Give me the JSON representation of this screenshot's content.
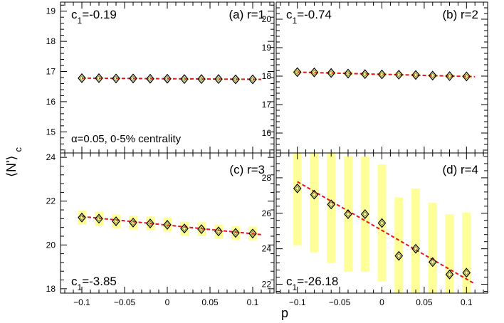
{
  "figure": {
    "ylabel": "⟨N'⟩c",
    "xlabel": "p",
    "colors": {
      "fit": "#e8141a",
      "band": "#ffff99",
      "marker": "#000000",
      "marker_fill": "#8b8c3a"
    }
  },
  "chart_data": [
    {
      "type": "scatter",
      "title": "(a) r=1",
      "c1_label": "c",
      "c1_sub": "1",
      "c1_value": "=-0.19",
      "note": "α=0.05, 0-5% centrality",
      "xlim": [
        -0.125,
        0.125
      ],
      "ylim": [
        14.3,
        19.3
      ],
      "yticks": [
        15,
        16,
        17,
        18,
        19
      ],
      "x": [
        -0.1,
        -0.08,
        -0.06,
        -0.04,
        -0.02,
        0,
        0.02,
        0.04,
        0.06,
        0.08,
        0.1
      ],
      "y": [
        16.78,
        16.78,
        16.77,
        16.77,
        16.76,
        16.76,
        16.75,
        16.75,
        16.75,
        16.74,
        16.74
      ],
      "band_halfwidth": [
        0.03,
        0.03,
        0.03,
        0.03,
        0.03,
        0.03,
        0.03,
        0.03,
        0.03,
        0.03,
        0.03
      ],
      "fit": {
        "p0": -0.1,
        "y0": 16.78,
        "p1": 0.11,
        "y1": 16.74
      }
    },
    {
      "type": "scatter",
      "title": "(b) r=2",
      "c1_label": "c",
      "c1_sub": "1",
      "c1_value": "=-0.74",
      "note": "",
      "xlim": [
        -0.125,
        0.125
      ],
      "ylim": [
        15.3,
        20.6
      ],
      "yticks": [
        16,
        17,
        18,
        19,
        20
      ],
      "x": [
        -0.1,
        -0.08,
        -0.06,
        -0.04,
        -0.02,
        0,
        0.02,
        0.04,
        0.06,
        0.08,
        0.1
      ],
      "y": [
        18.14,
        18.13,
        18.11,
        18.09,
        18.07,
        18.06,
        18.05,
        18.04,
        18.02,
        18.0,
        17.99
      ],
      "band_halfwidth": [
        0.08,
        0.08,
        0.08,
        0.08,
        0.08,
        0.08,
        0.08,
        0.08,
        0.08,
        0.08,
        0.08
      ],
      "fit": {
        "p0": -0.1,
        "y0": 18.14,
        "p1": 0.11,
        "y1": 17.98
      }
    },
    {
      "type": "scatter",
      "title": "(c) r=3",
      "c1_label": "c",
      "c1_sub": "1",
      "c1_value": "=-3.85",
      "note": "",
      "xlim": [
        -0.125,
        0.125
      ],
      "ylim": [
        17.8,
        24.2
      ],
      "yticks": [
        18,
        20,
        22,
        24
      ],
      "x": [
        -0.1,
        -0.08,
        -0.06,
        -0.04,
        -0.02,
        0,
        0.02,
        0.04,
        0.06,
        0.08,
        0.1
      ],
      "y": [
        21.25,
        21.2,
        21.08,
        21.02,
        20.98,
        20.92,
        20.75,
        20.72,
        20.62,
        20.55,
        20.52
      ],
      "band_halfwidth": [
        0.32,
        0.32,
        0.32,
        0.32,
        0.32,
        0.32,
        0.32,
        0.32,
        0.32,
        0.32,
        0.32
      ],
      "fit": {
        "p0": -0.1,
        "y0": 21.3,
        "p1": 0.11,
        "y1": 20.47
      }
    },
    {
      "type": "scatter",
      "title": "(d) r=4",
      "c1_label": "c",
      "c1_sub": "1",
      "c1_value": "=-26.18",
      "note": "",
      "xlim": [
        -0.125,
        0.125
      ],
      "ylim": [
        21.5,
        29.4
      ],
      "yticks": [
        22,
        24,
        26,
        28
      ],
      "x": [
        -0.1,
        -0.08,
        -0.06,
        -0.04,
        -0.02,
        0,
        0.02,
        0.04,
        0.06,
        0.08,
        0.1
      ],
      "y": [
        27.4,
        27.05,
        26.5,
        25.95,
        25.95,
        25.45,
        23.6,
        24.0,
        23.25,
        22.55,
        22.65
      ],
      "band_halfwidth": [
        3.2,
        3.25,
        3.3,
        3.25,
        3.25,
        3.3,
        3.3,
        3.4,
        3.35,
        3.4,
        3.4
      ],
      "fit": {
        "p0": -0.1,
        "y0": 27.78,
        "p1": 0.11,
        "y1": 22.02
      }
    }
  ]
}
